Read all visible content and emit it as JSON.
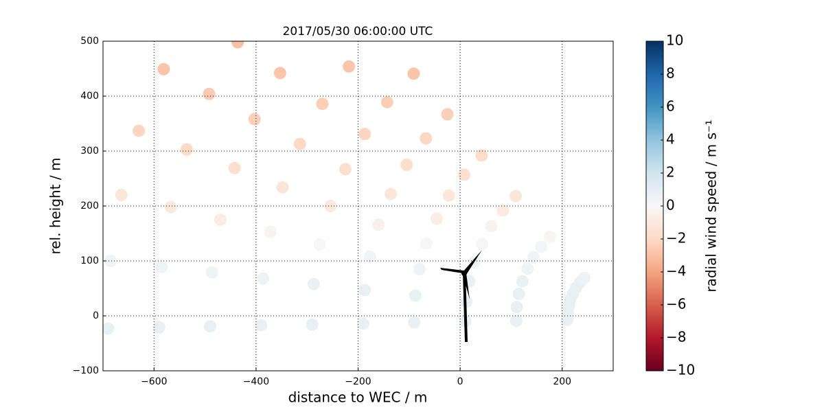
{
  "chart_data": {
    "type": "scatter",
    "title": "2017/05/30 06:00:00 UTC",
    "xlabel": "distance to WEC / m",
    "ylabel": "rel. height / m",
    "colorbar_label": "radial wind speed / m s⁻¹",
    "colormap": "RdBu",
    "grid": true,
    "xlim": [
      -700,
      300
    ],
    "ylim": [
      -100,
      500
    ],
    "clim": [
      -10,
      10
    ],
    "xticks": [
      {
        "value": -600,
        "label": "−600"
      },
      {
        "value": -400,
        "label": "−400"
      },
      {
        "value": -200,
        "label": "−200"
      },
      0,
      200
    ],
    "yticks": [
      {
        "value": -100,
        "label": "−100"
      },
      0,
      100,
      200,
      300,
      400,
      500
    ],
    "cticks": [
      {
        "value": -10,
        "label": "−10"
      },
      {
        "value": -8,
        "label": "−8"
      },
      {
        "value": -6,
        "label": "−6"
      },
      {
        "value": -4,
        "label": "−4"
      },
      {
        "value": -2,
        "label": "−2"
      },
      0,
      2,
      4,
      6,
      8,
      10
    ],
    "x": [
      210,
      110,
      10,
      -90,
      -190,
      -290,
      -390,
      -490,
      -590,
      -690,
      211,
      111,
      12,
      -88,
      -187,
      -287,
      -386,
      -486,
      -585,
      -685,
      213,
      115,
      18,
      -80,
      -177,
      -275,
      -372,
      -470,
      -567,
      -664,
      216,
      122,
      28,
      -66,
      -160,
      -254,
      -348,
      -442,
      -536,
      -630,
      221,
      132,
      43,
      -46,
      -136,
      -225,
      -314,
      -403,
      -492,
      -581,
      227,
      144,
      61,
      -22,
      -105,
      -187,
      -270,
      -353,
      -436,
      235,
      159,
      84,
      8,
      -67,
      -143,
      -218,
      243,
      176,
      109,
      42,
      -25,
      -91
    ],
    "y": [
      -7,
      -9,
      -10,
      -12,
      -14,
      -16,
      -17,
      -19,
      -21,
      -23,
      5,
      16,
      26,
      37,
      47,
      58,
      68,
      79,
      89,
      100,
      18,
      40,
      63,
      85,
      108,
      130,
      153,
      175,
      198,
      220,
      29,
      63,
      98,
      132,
      166,
      200,
      234,
      269,
      303,
      337,
      40,
      86,
      131,
      177,
      222,
      267,
      313,
      358,
      404,
      449,
      51,
      107,
      163,
      219,
      275,
      331,
      386,
      442,
      498,
      61,
      126,
      192,
      257,
      323,
      389,
      454,
      69,
      144,
      218,
      292,
      367,
      441
    ],
    "color_values": [
      0.8,
      0.8,
      0.8,
      0.8,
      0.8,
      0.8,
      0.8,
      0.8,
      0.8,
      0.8,
      0.8,
      0.8,
      0.8,
      0.8,
      0.8,
      0.7,
      0.6,
      0.5,
      0.5,
      0.4,
      0.8,
      0.8,
      0.7,
      0.5,
      0.3,
      0,
      -0.3,
      -0.7,
      -1,
      -1.2,
      0.8,
      0.7,
      0.4,
      0.1,
      -0.5,
      -1,
      -1.3,
      -1.7,
      -2,
      -2.2,
      0.8,
      0.5,
      0.1,
      -0.7,
      -1.2,
      -1.7,
      -2.1,
      -2.4,
      -2.6,
      -2.8,
      0.8,
      0.3,
      -0.4,
      -1.2,
      -1.8,
      -2.2,
      -2.5,
      -2.8,
      -3,
      0.7,
      0.2,
      -0.9,
      -1.6,
      -2.1,
      -2.5,
      -2.8,
      0.6,
      -0.2,
      -1.2,
      -1.9,
      -2.4,
      -2.8
    ]
  }
}
